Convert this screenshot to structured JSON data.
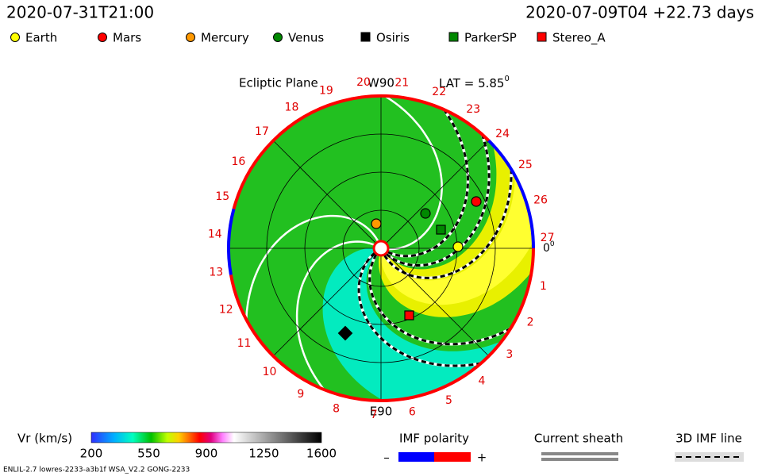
{
  "header": {
    "left": "2020-07-31T21:00",
    "right": "2020-07-09T04 +22.73 days"
  },
  "legend": [
    {
      "label": "Earth",
      "color": "#ffff00",
      "shape": "circle"
    },
    {
      "label": "Mars",
      "color": "#ff0000",
      "shape": "circle"
    },
    {
      "label": "Mercury",
      "color": "#ff9900",
      "shape": "circle"
    },
    {
      "label": "Venus",
      "color": "#008800",
      "shape": "circle"
    },
    {
      "label": "Osiris",
      "color": "#000000",
      "shape": "square"
    },
    {
      "label": "ParkerSP",
      "color": "#008800",
      "shape": "square"
    },
    {
      "label": "Stereo_A",
      "color": "#ff0000",
      "shape": "square"
    }
  ],
  "plot": {
    "title": "Ecliptic Plane",
    "top_label": "W90",
    "bottom_label": "E90",
    "lat": "LAT = 5.85",
    "lat_sup": "0",
    "zero_label": "0",
    "zero_sup": "0",
    "rotation_labels": [
      "1",
      "2",
      "3",
      "4",
      "5",
      "6",
      "7",
      "8",
      "9",
      "10",
      "11",
      "12",
      "13",
      "14",
      "15",
      "16",
      "17",
      "18",
      "19",
      "20",
      "21",
      "22",
      "23",
      "24",
      "25",
      "26",
      "27"
    ]
  },
  "colorbar": {
    "label": "Vr (km/s)",
    "ticks": [
      "200",
      "550",
      "900",
      "1250",
      "1600"
    ]
  },
  "imf": {
    "label": "IMF polarity",
    "minus": "–",
    "plus": "+"
  },
  "sheath": "Current sheath",
  "imf3d": "3D IMF line",
  "footer": "ENLIL-2.7 lowres-2233-a3b1f WSA_V2.2 GONG-2233"
}
